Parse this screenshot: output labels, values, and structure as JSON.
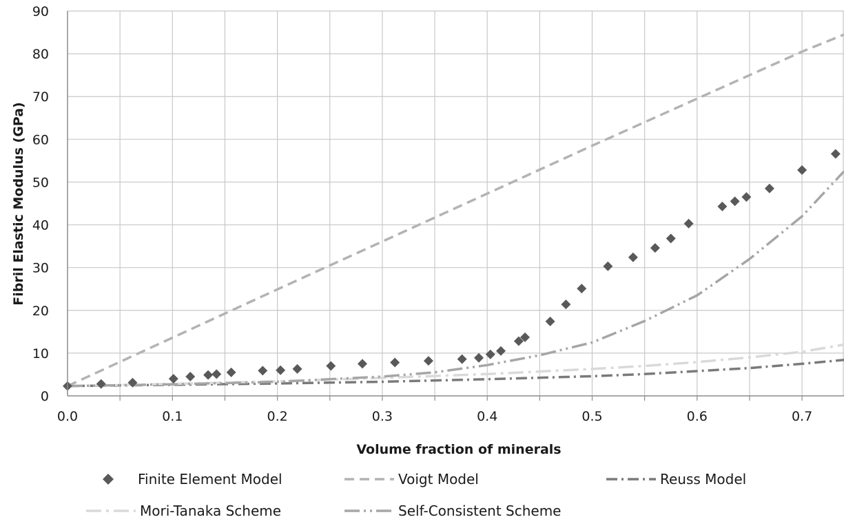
{
  "chart_data": {
    "type": "scatter",
    "xlabel": "Volume fraction of minerals",
    "ylabel": "Fibril Elastic Modulus (GPa)",
    "xlim": [
      0,
      0.74
    ],
    "ylim": [
      0,
      90
    ],
    "x_ticks": [
      "0.0",
      "0.1",
      "0.2",
      "0.3",
      "0.4",
      "0.5",
      "0.6",
      "0.7"
    ],
    "y_ticks": [
      "0",
      "10",
      "20",
      "30",
      "40",
      "50",
      "60",
      "70",
      "80",
      "90"
    ],
    "grid": true,
    "legend_position": "bottom",
    "series": [
      {
        "name": "Finite Element Model",
        "kind": "markers",
        "marker": "diamond",
        "color": "#595959",
        "x": [
          0.0,
          0.032,
          0.062,
          0.101,
          0.117,
          0.134,
          0.142,
          0.156,
          0.186,
          0.203,
          0.219,
          0.251,
          0.281,
          0.312,
          0.344,
          0.376,
          0.392,
          0.403,
          0.413,
          0.43,
          0.436,
          0.46,
          0.475,
          0.49,
          0.515,
          0.539,
          0.56,
          0.575,
          0.592,
          0.624,
          0.636,
          0.647,
          0.669,
          0.7,
          0.732
        ],
        "y": [
          2.3,
          2.8,
          3.1,
          4.0,
          4.5,
          4.9,
          5.1,
          5.5,
          5.9,
          6.0,
          6.3,
          7.0,
          7.5,
          7.8,
          8.2,
          8.6,
          8.9,
          9.7,
          10.5,
          12.8,
          13.7,
          17.4,
          21.4,
          25.1,
          30.3,
          32.4,
          34.6,
          36.8,
          40.3,
          44.3,
          45.5,
          46.5,
          48.5,
          52.8,
          56.6
        ]
      },
      {
        "name": "Voigt Model",
        "kind": "line",
        "dash": "14 8",
        "color": "#b3b3b3",
        "x": [
          0.0,
          0.1,
          0.2,
          0.3,
          0.4,
          0.5,
          0.6,
          0.7,
          0.74
        ],
        "y": [
          2.3,
          13.6,
          24.9,
          36.1,
          47.3,
          58.5,
          69.5,
          80.5,
          84.5
        ]
      },
      {
        "name": "Reuss Model",
        "kind": "line",
        "dash": "16 6 3 6",
        "color": "#7a7a7a",
        "x": [
          0.0,
          0.1,
          0.2,
          0.3,
          0.4,
          0.5,
          0.55,
          0.6,
          0.65,
          0.7,
          0.74
        ],
        "y": [
          2.3,
          2.6,
          2.9,
          3.3,
          3.9,
          4.6,
          5.1,
          5.8,
          6.5,
          7.5,
          8.4
        ]
      },
      {
        "name": "Mori-Tanaka Scheme",
        "kind": "line",
        "dash": "22 7 4 7",
        "color": "#d9d9d9",
        "x": [
          0.0,
          0.1,
          0.2,
          0.3,
          0.4,
          0.5,
          0.55,
          0.6,
          0.65,
          0.7,
          0.74
        ],
        "y": [
          2.3,
          2.8,
          3.4,
          4.2,
          5.1,
          6.3,
          7.0,
          7.9,
          9.0,
          10.3,
          12.0
        ]
      },
      {
        "name": "Self-Consistent Scheme",
        "kind": "line",
        "dash": "22 6 3 6 3 6",
        "color": "#a6a6a6",
        "x": [
          0.0,
          0.1,
          0.2,
          0.3,
          0.35,
          0.4,
          0.45,
          0.5,
          0.55,
          0.6,
          0.65,
          0.7,
          0.74
        ],
        "y": [
          2.3,
          2.7,
          3.3,
          4.5,
          5.5,
          7.2,
          9.5,
          12.5,
          17.5,
          23.5,
          32.0,
          42.0,
          52.5
        ]
      }
    ]
  }
}
